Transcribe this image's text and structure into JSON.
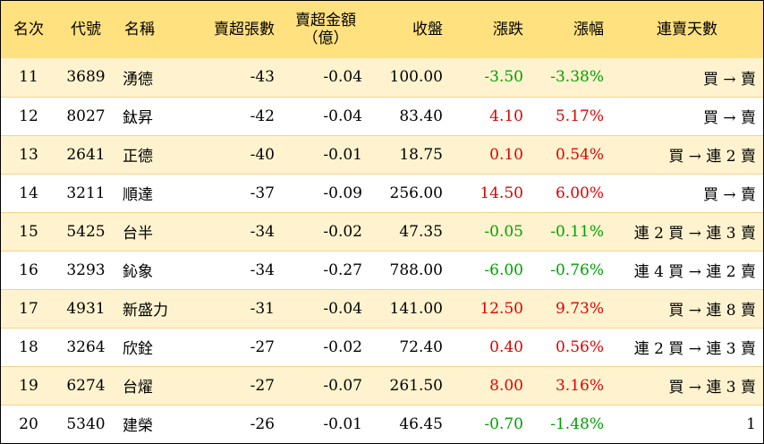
{
  "headers": {
    "rank": "名次",
    "code": "代號",
    "name": "名稱",
    "net_sell_shares": "賣超張數",
    "net_sell_amount": "賣超金額",
    "net_sell_amount_unit": "（億）",
    "close": "收盤",
    "change": "漲跌",
    "change_pct": "漲幅",
    "streak": "連賣天數"
  },
  "rows": [
    {
      "rank": "11",
      "code": "3689",
      "name": "湧德",
      "shares": "-43",
      "amount": "-0.04",
      "close": "100.00",
      "change": "-3.50",
      "pct": "-3.38%",
      "trend": "down",
      "streak": "買 → 賣"
    },
    {
      "rank": "12",
      "code": "8027",
      "name": "鈦昇",
      "shares": "-42",
      "amount": "-0.04",
      "close": "83.40",
      "change": "4.10",
      "pct": "5.17%",
      "trend": "up",
      "streak": "買 → 賣"
    },
    {
      "rank": "13",
      "code": "2641",
      "name": "正德",
      "shares": "-40",
      "amount": "-0.01",
      "close": "18.75",
      "change": "0.10",
      "pct": "0.54%",
      "trend": "up",
      "streak": "買 → 連 2 賣"
    },
    {
      "rank": "14",
      "code": "3211",
      "name": "順達",
      "shares": "-37",
      "amount": "-0.09",
      "close": "256.00",
      "change": "14.50",
      "pct": "6.00%",
      "trend": "up",
      "streak": "買 → 賣"
    },
    {
      "rank": "15",
      "code": "5425",
      "name": "台半",
      "shares": "-34",
      "amount": "-0.02",
      "close": "47.35",
      "change": "-0.05",
      "pct": "-0.11%",
      "trend": "down",
      "streak": "連 2 買 → 連 3 賣"
    },
    {
      "rank": "16",
      "code": "3293",
      "name": "鈊象",
      "shares": "-34",
      "amount": "-0.27",
      "close": "788.00",
      "change": "-6.00",
      "pct": "-0.76%",
      "trend": "down",
      "streak": "連 4 買 → 連 2 賣"
    },
    {
      "rank": "17",
      "code": "4931",
      "name": "新盛力",
      "shares": "-31",
      "amount": "-0.04",
      "close": "141.00",
      "change": "12.50",
      "pct": "9.73%",
      "trend": "up",
      "streak": "買 → 連 8 賣"
    },
    {
      "rank": "18",
      "code": "3264",
      "name": "欣銓",
      "shares": "-27",
      "amount": "-0.02",
      "close": "72.40",
      "change": "0.40",
      "pct": "0.56%",
      "trend": "up",
      "streak": "連 2 買 → 連 3 賣"
    },
    {
      "rank": "19",
      "code": "6274",
      "name": "台燿",
      "shares": "-27",
      "amount": "-0.07",
      "close": "261.50",
      "change": "8.00",
      "pct": "3.16%",
      "trend": "up",
      "streak": "買 → 連 3 賣"
    },
    {
      "rank": "20",
      "code": "5340",
      "name": "建榮",
      "shares": "-26",
      "amount": "-0.01",
      "close": "46.45",
      "change": "-0.70",
      "pct": "-1.48%",
      "trend": "down",
      "streak": "1"
    }
  ],
  "colors": {
    "header_bg": "#ffe17f",
    "odd_row_bg": "#fff3cf",
    "up": "#e00000",
    "down": "#00a000"
  }
}
